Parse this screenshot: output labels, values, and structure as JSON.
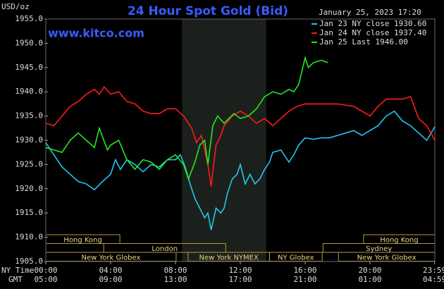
{
  "chart_data": {
    "type": "line",
    "title": "24 Hour Spot Gold (Bid)",
    "timestamp": "January 25, 2023 17:20",
    "website": "www.kitco.com",
    "y_label": "USD/oz",
    "x_row_labels": [
      "NY Time",
      "GMT"
    ],
    "xlim": [
      0,
      24
    ],
    "ylim": [
      1905,
      1955
    ],
    "xticks": [
      {
        "value": 0,
        "label": "00:00"
      },
      {
        "value": 4,
        "label": "04:00"
      },
      {
        "value": 8,
        "label": "08:00"
      },
      {
        "value": 12,
        "label": "12:00"
      },
      {
        "value": 16,
        "label": "16:00"
      },
      {
        "value": 20,
        "label": "20:00"
      },
      {
        "value": 23.98,
        "label": "23:59"
      }
    ],
    "gmt_labels": [
      "05:00",
      "09:00",
      "13:00",
      "17:00",
      "21:00",
      "01:00",
      "04:59"
    ],
    "yticks": [
      {
        "value": 1905,
        "label": "1905.0"
      },
      {
        "value": 1910,
        "label": "1910.0"
      },
      {
        "value": 1915,
        "label": "1915.0"
      },
      {
        "value": 1920,
        "label": "1920.0"
      },
      {
        "value": 1925,
        "label": "1925.0"
      },
      {
        "value": 1930,
        "label": "1930.0"
      },
      {
        "value": 1935,
        "label": "1935.0"
      },
      {
        "value": 1940,
        "label": "1940.0"
      },
      {
        "value": 1945,
        "label": "1945.0"
      },
      {
        "value": 1950,
        "label": "1950.0"
      },
      {
        "value": 1955,
        "label": "1955.0"
      }
    ],
    "shaded_region": [
      8.4,
      13.6
    ],
    "series": [
      {
        "name": "Jan 23 NY close",
        "last": 1930.6,
        "last_label": "1930.60",
        "color": "#1fc8f0",
        "x": [
          0,
          0.5,
          1,
          1.5,
          2,
          2.5,
          3,
          3.5,
          4,
          4.3,
          4.6,
          5,
          5.5,
          6,
          6.5,
          7,
          7.5,
          8,
          8.3,
          8.6,
          8.9,
          9.2,
          9.5,
          9.8,
          10,
          10.2,
          10.5,
          10.8,
          11,
          11.2,
          11.5,
          11.8,
          12,
          12.3,
          12.6,
          12.9,
          13.2,
          13.5,
          13.8,
          14,
          14.5,
          15,
          15.3,
          15.6,
          16,
          16.5,
          17,
          17.5,
          18,
          18.5,
          19,
          19.5,
          20,
          20.5,
          21,
          21.5,
          22,
          22.5,
          23,
          23.5,
          24
        ],
        "values": [
          1929.5,
          1927,
          1924.5,
          1923,
          1921.5,
          1921,
          1919.8,
          1921.5,
          1923,
          1926,
          1924,
          1926,
          1925,
          1923.5,
          1925,
          1924.5,
          1926,
          1926,
          1927,
          1924.5,
          1921,
          1918,
          1916,
          1914,
          1915,
          1911.5,
          1916,
          1915,
          1916,
          1919,
          1922,
          1923,
          1925,
          1921,
          1923,
          1921,
          1922,
          1924,
          1925.5,
          1927.5,
          1928,
          1925.5,
          1927,
          1929,
          1930.5,
          1930.2,
          1930.5,
          1930.5,
          1931,
          1931.5,
          1932,
          1931,
          1932,
          1933,
          1935,
          1936,
          1934,
          1933,
          1931.5,
          1930,
          1932.8
        ]
      },
      {
        "name": "Jan 24 NY close",
        "last": 1937.4,
        "last_label": "1937.40",
        "color": "#ff1a1a",
        "x": [
          0,
          0.5,
          1,
          1.5,
          2,
          2.5,
          3,
          3.3,
          3.6,
          4,
          4.5,
          5,
          5.5,
          6,
          6.5,
          7,
          7.5,
          8,
          8.5,
          9,
          9.3,
          9.6,
          10,
          10.2,
          10.5,
          10.8,
          11,
          11.5,
          12,
          12.5,
          13,
          13.5,
          14,
          14.5,
          15,
          15.5,
          16,
          17,
          18,
          19,
          20,
          20.5,
          21,
          22,
          22.5,
          23,
          23.5,
          24
        ],
        "values": [
          1933.5,
          1933,
          1935,
          1937,
          1938,
          1939.5,
          1940.5,
          1939.5,
          1941,
          1939.5,
          1940,
          1938,
          1937.5,
          1936,
          1935.5,
          1935.5,
          1936.5,
          1936.5,
          1935,
          1932.5,
          1929.5,
          1931,
          1925,
          1920.5,
          1929,
          1931,
          1933,
          1935,
          1936,
          1935,
          1933.5,
          1934.5,
          1933,
          1934.5,
          1936,
          1937,
          1937.5,
          1937.5,
          1937.5,
          1937,
          1935,
          1937,
          1938.5,
          1938.5,
          1939,
          1934.5,
          1933,
          1930
        ]
      },
      {
        "name": "Jan 25 Last",
        "last": 1946.0,
        "last_label": "1946.00",
        "color": "#22e822",
        "x": [
          0,
          0.5,
          1,
          1.5,
          2,
          2.5,
          3,
          3.3,
          3.8,
          4,
          4.5,
          5,
          5.5,
          6,
          6.5,
          7,
          7.5,
          8,
          8.5,
          8.8,
          9.2,
          9.5,
          9.8,
          10,
          10.3,
          10.6,
          11,
          11.3,
          11.6,
          12,
          12.5,
          13,
          13.5,
          14,
          14.5,
          15,
          15.3,
          15.6,
          16,
          16.2,
          16.5,
          17,
          17.4
        ],
        "values": [
          1928.5,
          1928,
          1927.5,
          1930,
          1931.5,
          1930,
          1928.5,
          1932.5,
          1928,
          1929,
          1930,
          1926,
          1924,
          1926,
          1925.5,
          1924,
          1926,
          1927,
          1925,
          1922,
          1925.5,
          1929,
          1930,
          1925,
          1933,
          1935,
          1933.5,
          1934.5,
          1935.5,
          1934.5,
          1935,
          1936.5,
          1939,
          1940,
          1939.5,
          1940.5,
          1940,
          1941.5,
          1947,
          1945,
          1946,
          1946.5,
          1946
        ]
      }
    ],
    "session_rows": [
      [
        {
          "name": "Hong Kong",
          "start": 0,
          "end": 4.57
        },
        {
          "name": "Hong Kong",
          "start": 19.6,
          "end": 24
        }
      ],
      [
        {
          "name": "London",
          "start": 3.57,
          "end": 11.1
        },
        {
          "name": "Sydney",
          "start": 17.1,
          "end": 24
        }
      ],
      [
        {
          "name": "New York Globex",
          "start": 0,
          "end": 8.04
        },
        {
          "name": "New York NYMEX",
          "start": 8.78,
          "end": 13.8
        },
        {
          "name": "NY Globex",
          "start": 13.8,
          "end": 17.05
        },
        {
          "name": "New York Globex",
          "start": 18.05,
          "end": 24
        }
      ]
    ]
  }
}
